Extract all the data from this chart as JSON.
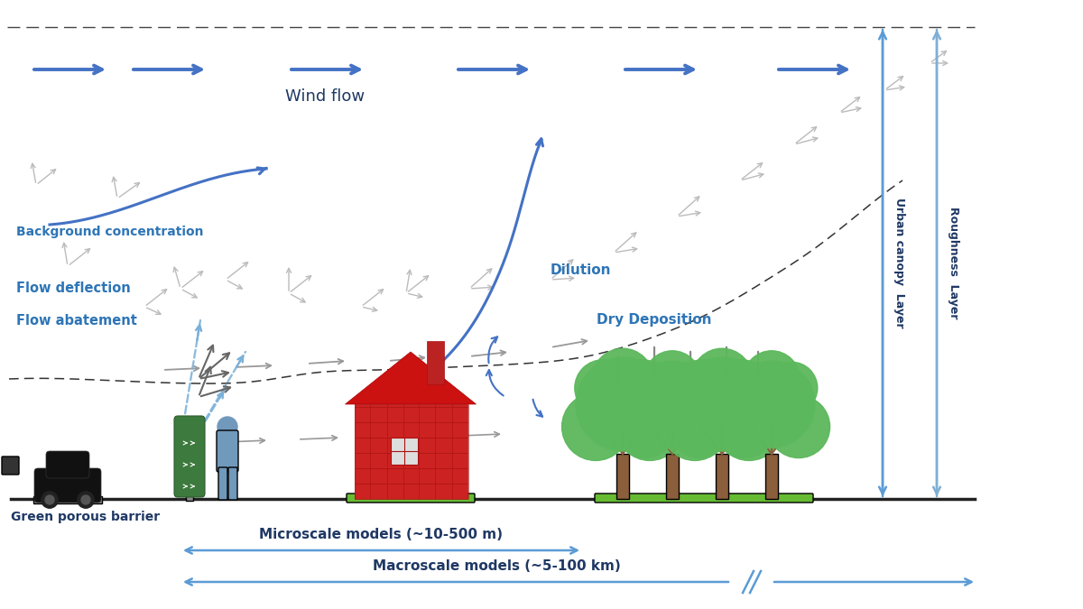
{
  "bg_color": "#ffffff",
  "blue": "#4472C4",
  "lblue": "#5B9BD5",
  "gray_arr": "#aaaaaa",
  "dgray_arr": "#777777",
  "dblue": "#7ab0d8",
  "ground_color": "#1a1a1a",
  "car_color": "#111111",
  "barrier_green": "#3d7a3d",
  "person_color": "#7099bb",
  "house_red": "#cc2222",
  "tree_green": "#5cb85c",
  "tree_trunk": "#7B4F2E",
  "grass_green": "#66bb33",
  "txt_dark": "#1F3864",
  "txt_blue": "#2E75B6",
  "labels": {
    "wind_flow": "Wind flow",
    "background_conc": "Background concentration",
    "dilution": "Dilution",
    "dry_deposition": "Dry Deposition",
    "flow_deflection": "Flow deflection",
    "flow_abatement": "Flow abatement",
    "green_barrier": "Green porous barrier",
    "urban_canopy": "Urban canopy  Layer",
    "roughness": "Roughness  Layer",
    "microscale": "Microscale models (~10-500 m)",
    "macroscale": "Macroscale models (~5-100 km)"
  }
}
